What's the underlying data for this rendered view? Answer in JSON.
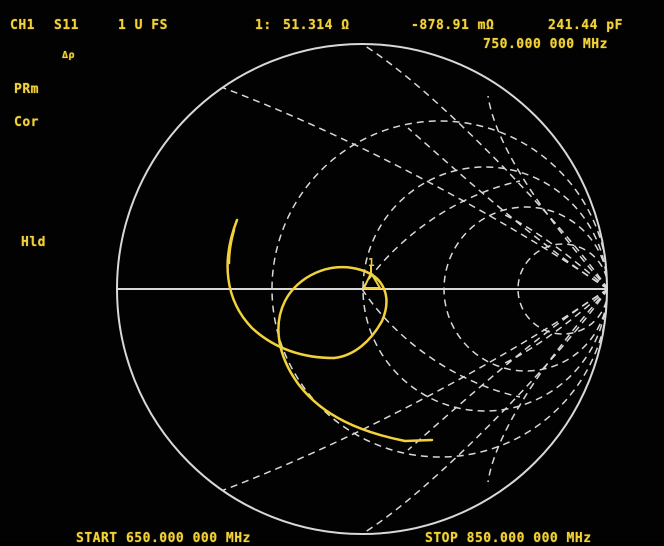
{
  "header": {
    "channel": "CH1",
    "parameter": "S11",
    "scale": "1 U FS",
    "marker_label": "1:",
    "resistance": "51.314 Ω",
    "reactance": "-878.91 mΩ",
    "capacitance": "241.44 pF",
    "marker_frequency": "750.000 000 MHz"
  },
  "side": {
    "prm": "PRm",
    "cor": "Cor",
    "hld": "Hld",
    "delta": "Δρ"
  },
  "footer": {
    "start": "START  650.000 000 MHz",
    "stop": "STOP  850.000 000 MHz"
  },
  "marker": {
    "label": "1"
  },
  "colors": {
    "trace": "#f2d23a",
    "grid": "#d8d8d8",
    "background": "#020202"
  }
}
